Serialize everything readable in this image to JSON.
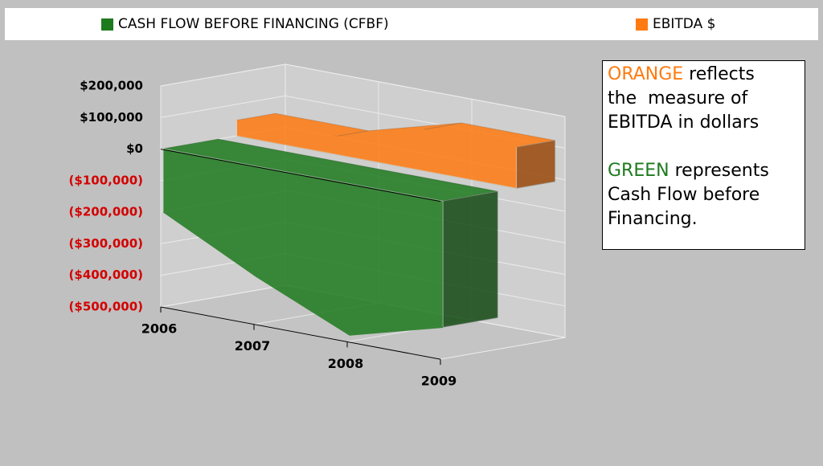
{
  "chart_data": {
    "type": "area3d",
    "categories": [
      "2006",
      "2007",
      "2008",
      "2009"
    ],
    "series": [
      {
        "name": "CASH FLOW BEFORE FINANCING (CFBF)",
        "color": "#1e7a1e",
        "values": [
          -200000,
          -350000,
          -480000,
          -400000
        ]
      },
      {
        "name": "EBITDA $",
        "color": "#ff7a10",
        "values": [
          50000,
          50000,
          130000,
          130000
        ]
      }
    ],
    "ylim": [
      -500000,
      200000
    ],
    "yticks": [
      {
        "value": -500000,
        "label": "($500,000)"
      },
      {
        "value": -400000,
        "label": "($400,000)"
      },
      {
        "value": -300000,
        "label": "($300,000)"
      },
      {
        "value": -200000,
        "label": "($200,000)"
      },
      {
        "value": -100000,
        "label": "($100,000)"
      },
      {
        "value": 0,
        "label": "$0"
      },
      {
        "value": 100000,
        "label": "$100,000"
      },
      {
        "value": 200000,
        "label": "$200,000"
      }
    ],
    "negative_tick_color": "#d40000",
    "grid": true,
    "legend": "top",
    "annotations": [
      {
        "highlight": "ORANGE",
        "color": "#ff7a10",
        "lines": [
          "reflects",
          "the  measure of",
          "EBITDA in dollars"
        ]
      },
      {
        "highlight": "GREEN",
        "color": "#1e7a1e",
        "lines": [
          "represents",
          "Cash Flow before",
          "Financing."
        ]
      }
    ]
  }
}
